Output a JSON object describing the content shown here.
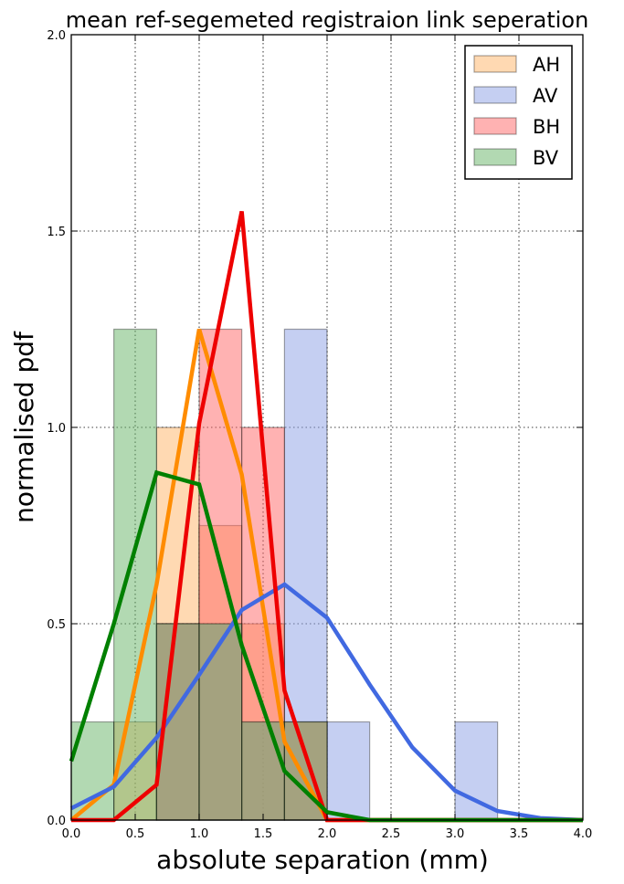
{
  "chart_data": {
    "type": "histogram-with-density-lines",
    "title": "mean ref-segemeted registraion link seperation",
    "xlabel": "absolute separation (mm)",
    "ylabel": "normalised pdf",
    "xlim": [
      0,
      4.0
    ],
    "ylim": [
      0,
      2.0
    ],
    "xticks": [
      "0.0",
      "0.5",
      "1.0",
      "1.5",
      "2.0",
      "2.5",
      "3.0",
      "3.5",
      "4.0"
    ],
    "yticks": [
      "0.0",
      "0.5",
      "1.0",
      "1.5",
      "2.0"
    ],
    "grid": true,
    "legend_position": "top-right",
    "series": [
      {
        "name": "AH",
        "fill": "#ffb366",
        "line": "#ff8c00",
        "bins": [
          {
            "x0": 0.333,
            "x1": 0.667,
            "value": 0.25
          },
          {
            "x0": 0.667,
            "x1": 1.0,
            "value": 1.0
          },
          {
            "x0": 1.0,
            "x1": 1.333,
            "value": 0.75
          },
          {
            "x0": 1.333,
            "x1": 1.667,
            "value": 0.5
          },
          {
            "x0": 1.667,
            "x1": 2.0,
            "value": 0.25
          }
        ],
        "curve_x": [
          0,
          0.333,
          0.667,
          1.0,
          1.333,
          1.667,
          2.0,
          2.333,
          2.667,
          3.0,
          3.333,
          3.667,
          4.0
        ],
        "curve_y": [
          0.0,
          0.09,
          0.6,
          1.25,
          0.88,
          0.2,
          0.0,
          0.0,
          0.0,
          0.0,
          0.0,
          0.0,
          0.0
        ]
      },
      {
        "name": "AV",
        "fill": "#8ca0e6",
        "line": "#4169e1",
        "bins": [
          {
            "x0": 0.667,
            "x1": 1.0,
            "value": 0.5
          },
          {
            "x0": 1.0,
            "x1": 1.333,
            "value": 0.5
          },
          {
            "x0": 1.333,
            "x1": 1.667,
            "value": 0.25
          },
          {
            "x0": 1.667,
            "x1": 2.0,
            "value": 1.25
          },
          {
            "x0": 2.0,
            "x1": 2.333,
            "value": 0.25
          },
          {
            "x0": 3.0,
            "x1": 3.333,
            "value": 0.25
          }
        ],
        "curve_x": [
          0,
          0.333,
          0.667,
          1.0,
          1.333,
          1.667,
          2.0,
          2.333,
          2.667,
          3.0,
          3.333,
          3.667,
          4.0
        ],
        "curve_y": [
          0.03,
          0.085,
          0.21,
          0.37,
          0.535,
          0.6,
          0.515,
          0.345,
          0.185,
          0.075,
          0.023,
          0.005,
          0.0
        ]
      },
      {
        "name": "BH",
        "fill": "#ff6666",
        "line": "#ee0000",
        "bins": [
          {
            "x0": 0.667,
            "x1": 1.0,
            "value": 0.5
          },
          {
            "x0": 1.0,
            "x1": 1.333,
            "value": 1.25
          },
          {
            "x0": 1.333,
            "x1": 1.667,
            "value": 1.0
          },
          {
            "x0": 1.667,
            "x1": 2.0,
            "value": 0.25
          }
        ],
        "curve_x": [
          0,
          0.333,
          0.667,
          1.0,
          1.333,
          1.667,
          2.0,
          2.333,
          2.667,
          3.0,
          3.333,
          3.667,
          4.0
        ],
        "curve_y": [
          0.0,
          0.0,
          0.09,
          1.01,
          1.55,
          0.33,
          0.0,
          0.0,
          0.0,
          0.0,
          0.0,
          0.0,
          0.0
        ]
      },
      {
        "name": "BV",
        "fill": "#66b366",
        "line": "#008000",
        "bins": [
          {
            "x0": 0.0,
            "x1": 0.333,
            "value": 0.25
          },
          {
            "x0": 0.333,
            "x1": 0.667,
            "value": 1.25
          },
          {
            "x0": 0.667,
            "x1": 1.0,
            "value": 0.5
          },
          {
            "x0": 1.0,
            "x1": 1.333,
            "value": 0.5
          },
          {
            "x0": 1.333,
            "x1": 1.667,
            "value": 0.25
          },
          {
            "x0": 1.667,
            "x1": 2.0,
            "value": 0.25
          }
        ],
        "curve_x": [
          0,
          0.333,
          0.667,
          1.0,
          1.333,
          1.667,
          2.0,
          2.333,
          2.667,
          3.0,
          3.333,
          3.667,
          4.0
        ],
        "curve_y": [
          0.15,
          0.5,
          0.885,
          0.855,
          0.445,
          0.125,
          0.02,
          0.0,
          0.0,
          0.0,
          0.0,
          0.0,
          0.0
        ]
      }
    ]
  }
}
